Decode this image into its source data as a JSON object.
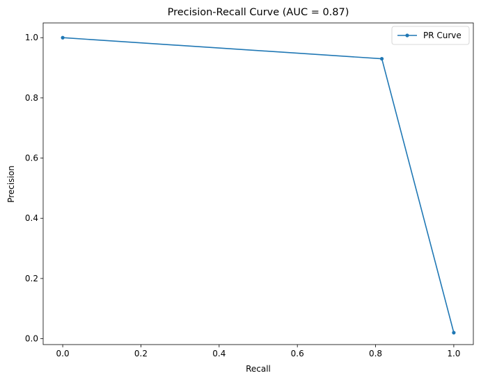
{
  "chart_data": {
    "type": "line",
    "title": "Precision-Recall Curve (AUC = 0.87)",
    "xlabel": "Recall",
    "ylabel": "Precision",
    "xlim": [
      -0.05,
      1.05
    ],
    "ylim": [
      -0.0195,
      1.049
    ],
    "xticks": [
      0.0,
      0.2,
      0.4,
      0.6,
      0.8,
      1.0
    ],
    "xtick_labels": [
      "0.0",
      "0.2",
      "0.4",
      "0.6",
      "0.8",
      "1.0"
    ],
    "yticks": [
      0.0,
      0.2,
      0.4,
      0.6,
      0.8,
      1.0
    ],
    "ytick_labels": [
      "0.0",
      "0.2",
      "0.4",
      "0.6",
      "0.8",
      "1.0"
    ],
    "grid": false,
    "legend": "top-right",
    "series": [
      {
        "name": "PR Curve",
        "color": "#1f77b4",
        "marker": "dot",
        "x": [
          0.0,
          0.816,
          1.0
        ],
        "y": [
          1.0,
          0.93,
          0.02
        ]
      }
    ]
  }
}
